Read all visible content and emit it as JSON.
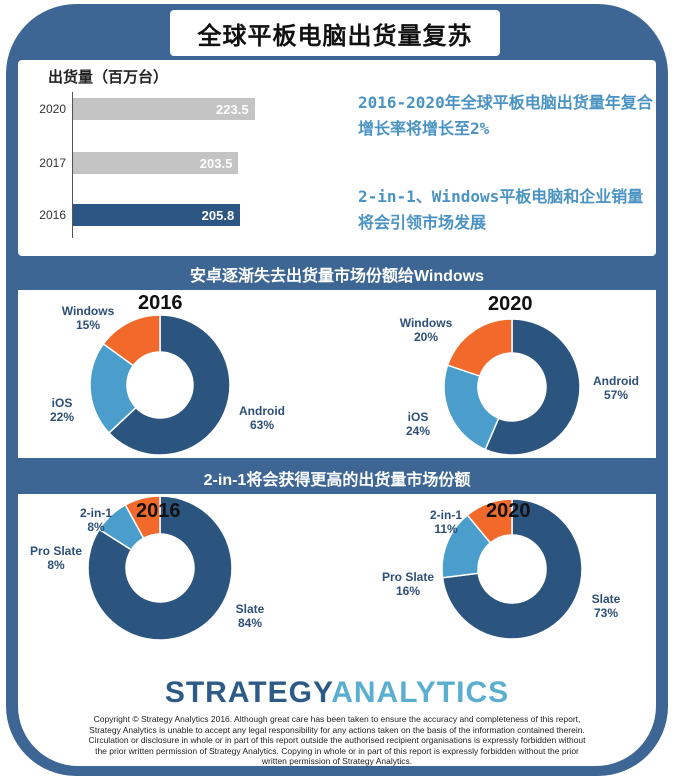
{
  "title": "全球平板电脑出货量复苏",
  "colors": {
    "frame": "#3e6694",
    "dark_bar": "#2e5684",
    "light_bar": "#c4c4c4",
    "dark_slice": "#2b557f",
    "mid_slice": "#4b9ecb",
    "orange_slice": "#f26a2b",
    "note_text": "#4a93c3"
  },
  "notes": [
    "2016-2020年全球平板电脑出货量年复合增长率将增长至2%",
    "2-in-1、Windows平板电脑和企业销量将会引领市场发展"
  ],
  "section_titles": [
    "安卓逐渐失去出货量市场份额给Windows",
    "2-in-1将会获得更高的出货量市场份额"
  ],
  "logo": {
    "part1": "STRATEGY",
    "part2": "ANALYTICS"
  },
  "copyright": "Copyright © Strategy Analytics 2016. Although great care has been taken to ensure the accuracy and completeness of this report, Strategy Analytics is unable to accept any legal responsibility for any actions taken on the basis of the information contained therein. Circulation or disclosure in whole or in part of this report outside the authorised recipient organisations is expressly forbidden without the prior written permission of Strategy Analytics. Copying in whole or in part of this report is expressly forbidden without the prior written permission of Strategy Analytics.",
  "chart_data": [
    {
      "type": "bar",
      "orientation": "horizontal",
      "title": "",
      "ylabel": "出货量（百万台）",
      "categories": [
        "2020",
        "2017",
        "2016"
      ],
      "values": [
        223.5,
        203.5,
        205.8
      ],
      "value_labels": [
        "223.5",
        "203.5",
        "205.8"
      ],
      "bar_colors": [
        "#c4c4c4",
        "#c4c4c4",
        "#2e5684"
      ],
      "xlim": [
        0,
        240
      ]
    },
    {
      "type": "pie",
      "title": "2016",
      "donut": true,
      "labels": [
        "Android",
        "iOS",
        "Windows"
      ],
      "values": [
        63,
        22,
        15
      ],
      "value_labels": [
        "63%",
        "22%",
        "15%"
      ],
      "colors": [
        "#2b557f",
        "#4b9ecb",
        "#f26a2b"
      ]
    },
    {
      "type": "pie",
      "title": "2020",
      "donut": true,
      "labels": [
        "Android",
        "iOS",
        "Windows"
      ],
      "values": [
        57,
        24,
        20
      ],
      "value_labels": [
        "57%",
        "24%",
        "20%"
      ],
      "colors": [
        "#2b557f",
        "#4b9ecb",
        "#f26a2b"
      ]
    },
    {
      "type": "pie",
      "title": "2016",
      "donut": true,
      "labels": [
        "Slate",
        "Pro Slate",
        "2-in-1"
      ],
      "values": [
        84,
        8,
        8
      ],
      "value_labels": [
        "84%",
        "8%",
        "8%"
      ],
      "colors": [
        "#2b557f",
        "#4b9ecb",
        "#f26a2b"
      ]
    },
    {
      "type": "pie",
      "title": "2020",
      "donut": true,
      "labels": [
        "Slate",
        "Pro Slate",
        "2-in-1"
      ],
      "values": [
        73,
        16,
        11
      ],
      "value_labels": [
        "73%",
        "16%",
        "11%"
      ],
      "colors": [
        "#2b557f",
        "#4b9ecb",
        "#f26a2b"
      ]
    }
  ]
}
